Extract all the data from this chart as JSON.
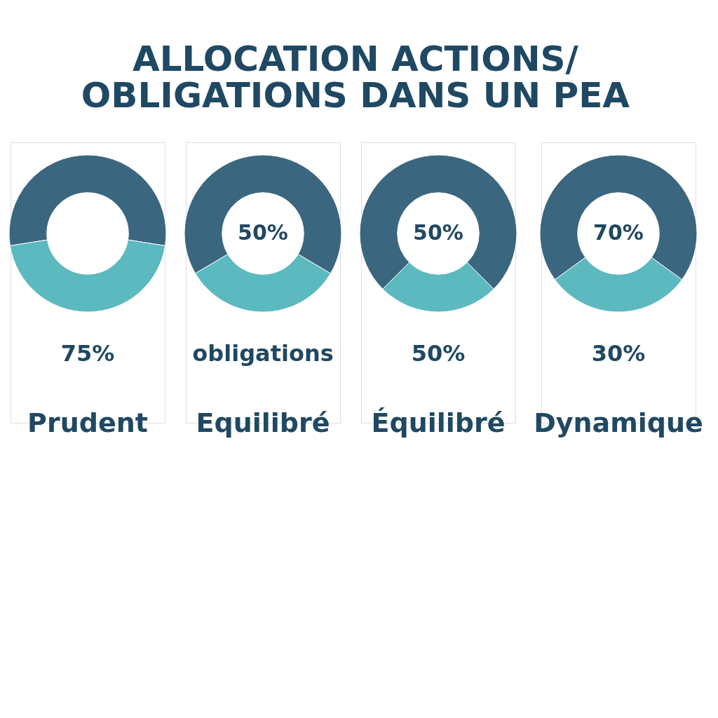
{
  "chart_data": [
    {
      "type": "donut",
      "title": "ALLOCATION ACTIONS/\nOBLIGATIONS DANS UN PEA",
      "categories": [
        null,
        null
      ],
      "values": [
        55,
        45
      ],
      "colors": [
        "#3b667f",
        "#5bb9bf"
      ],
      "annotations": [
        "75%"
      ],
      "xlabel": "Prudent",
      "legend": false
    },
    {
      "type": "donut",
      "categories": [
        null,
        null
      ],
      "values": [
        67,
        33
      ],
      "colors": [
        "#3b667f",
        "#5bb9bf"
      ],
      "annotations": [
        "50%",
        "obligations"
      ],
      "xlabel": "Equilibré",
      "legend": false
    },
    {
      "type": "donut",
      "categories": [
        null,
        null
      ],
      "values": [
        75,
        25
      ],
      "colors": [
        "#3b667f",
        "#5bb9bf"
      ],
      "annotations": [
        "50%",
        "50%"
      ],
      "xlabel": "Équilibré",
      "legend": false
    },
    {
      "type": "donut",
      "categories": [
        null,
        null
      ],
      "values": [
        70,
        30
      ],
      "colors": [
        "#3b667f",
        "#5bb9bf"
      ],
      "annotations": [
        "70%",
        "30%"
      ],
      "xlabel": "Dynamique",
      "legend": false
    }
  ]
}
